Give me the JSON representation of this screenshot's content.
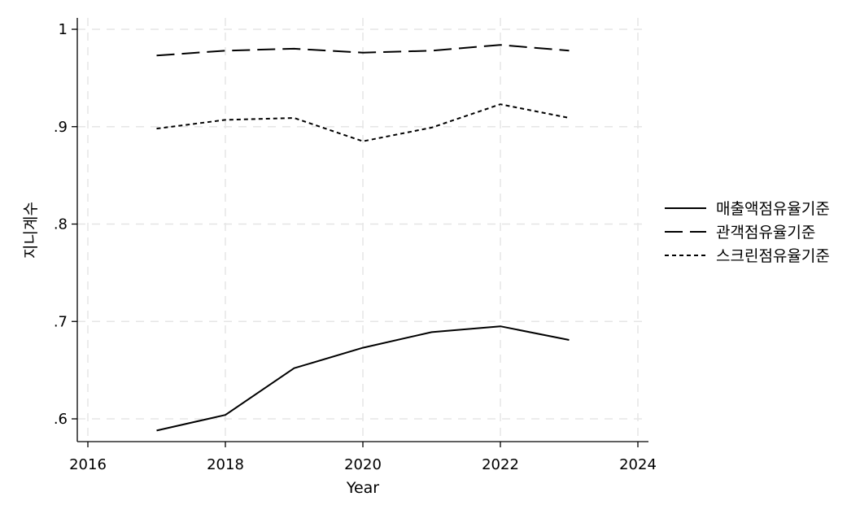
{
  "chart_data": {
    "type": "line",
    "xlabel": "Year",
    "ylabel": "지니계수",
    "xlim": [
      2016,
      2024
    ],
    "ylim": [
      0.6,
      1
    ],
    "xticks": [
      2016,
      2018,
      2020,
      2022,
      2024
    ],
    "xtick_labels": [
      "2016",
      "2018",
      "2020",
      "2022",
      "2024"
    ],
    "yticks": [
      0.6,
      0.7,
      0.8,
      0.9,
      1
    ],
    "ytick_labels": [
      ".6",
      ".7",
      ".8",
      ".9",
      "1"
    ],
    "grid": true,
    "legend_position": "right",
    "x": [
      2017,
      2018,
      2019,
      2020,
      2021,
      2022,
      2023
    ],
    "series": [
      {
        "name": "매출액점유율기준",
        "dash": "solid",
        "values": [
          0.588,
          0.604,
          0.652,
          0.673,
          0.689,
          0.695,
          0.681
        ]
      },
      {
        "name": "관객점유율기준",
        "dash": "dashed",
        "values": [
          0.973,
          0.978,
          0.98,
          0.976,
          0.978,
          0.984,
          0.978
        ]
      },
      {
        "name": "스크린점유율기준",
        "dash": "dotted",
        "values": [
          0.898,
          0.907,
          0.909,
          0.885,
          0.899,
          0.923,
          0.909
        ]
      }
    ]
  }
}
